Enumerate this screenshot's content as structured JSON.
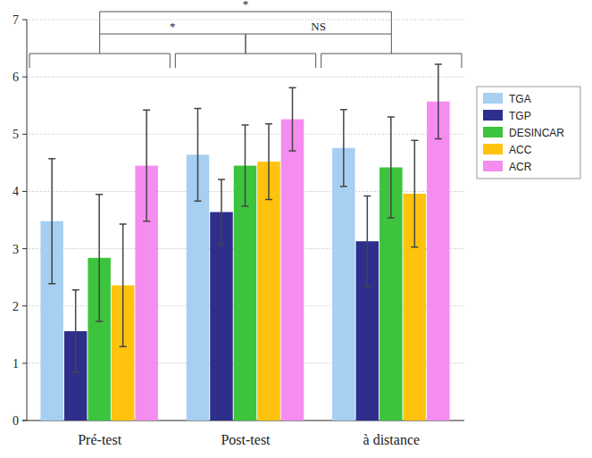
{
  "chart_data": {
    "type": "bar",
    "categories": [
      "Pré-test",
      "Post-test",
      "à distance"
    ],
    "series": [
      {
        "name": "TGA",
        "color": "#a6cff2",
        "values": [
          3.48,
          4.64,
          4.76
        ],
        "errors": [
          1.09,
          0.81,
          0.67
        ]
      },
      {
        "name": "TGP",
        "color": "#2e2e8c",
        "values": [
          1.56,
          3.64,
          3.13
        ],
        "errors": [
          0.72,
          0.57,
          0.79
        ]
      },
      {
        "name": "DESINCAR",
        "color": "#3cc43c",
        "values": [
          2.84,
          4.45,
          4.42
        ],
        "errors": [
          1.11,
          0.71,
          0.88
        ]
      },
      {
        "name": "ACC",
        "color": "#ffc20e",
        "values": [
          2.36,
          4.52,
          3.96
        ],
        "errors": [
          1.07,
          0.66,
          0.93
        ]
      },
      {
        "name": "ACR",
        "color": "#f58cf0",
        "values": [
          4.45,
          5.26,
          5.57
        ],
        "errors": [
          0.97,
          0.55,
          0.65
        ]
      }
    ],
    "annotations": [
      {
        "from": "Pré-test",
        "to": "Post-test",
        "text": "*"
      },
      {
        "from": "Post-test",
        "to": "à distance",
        "text": "NS"
      },
      {
        "from": "Pré-test",
        "to": "à distance",
        "text": "*"
      }
    ],
    "ylim": [
      0,
      7
    ],
    "yticks": [
      0,
      1,
      2,
      3,
      4,
      5,
      6,
      7
    ],
    "grid": true,
    "legend": "upper right"
  }
}
